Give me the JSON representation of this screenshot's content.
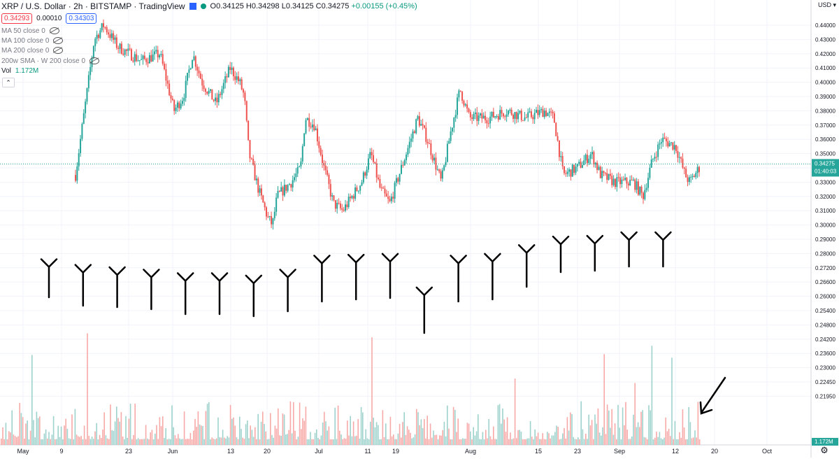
{
  "header": {
    "title": "XRP / U.S. Dollar · 2h · BITSTAMP · TradingView",
    "ohlc": {
      "o": "O0.34125",
      "h": "H0.34298",
      "l": "L0.34125",
      "c": "C0.34275",
      "chg": "+0.00155 (+0.45%)"
    },
    "bid": "0.34293",
    "spread": "0.00010",
    "ask": "0.34303",
    "indicators": [
      "MA 50 close 0",
      "MA 100 close 0",
      "MA 200 close 0",
      "200w SMA · W 200 close 0"
    ],
    "vol_label": "Vol",
    "vol_value": "1.172M",
    "currency": "USD"
  },
  "colors": {
    "up": "#26a69a",
    "down": "#ef5350",
    "up_vol": "#9ed3cd",
    "down_vol": "#f7a9a7",
    "price_line": "#26a69a",
    "grid": "#f0f3fa",
    "arrow": "#000000"
  },
  "chart_data": {
    "type": "candlestick",
    "title": "XRP / U.S. Dollar · 2h · BITSTAMP · TradingView",
    "y_axis": {
      "ticks": [
        "0.44000",
        "0.43000",
        "0.42000",
        "0.41000",
        "0.40000",
        "0.39000",
        "0.38000",
        "0.37000",
        "0.36000",
        "0.35000",
        "0.34000",
        "0.33000",
        "0.32000",
        "0.31000",
        "0.30000",
        "0.29000",
        "0.28000",
        "0.27200",
        "0.26600",
        "0.26000",
        "0.25400",
        "0.24800",
        "0.24200",
        "0.23600",
        "0.23000",
        "0.22450",
        "0.21950"
      ],
      "current_price": "0.34275",
      "countdown": "01:40:03",
      "volume_badge": "1.172M"
    },
    "x_axis": {
      "ticks": [
        "May",
        "9",
        "23",
        "Jun",
        "13",
        "20",
        "Jul",
        "11",
        "19",
        "Aug",
        "15",
        "23",
        "Sep",
        "12",
        "20",
        "Oct"
      ]
    },
    "path": [
      [
        0,
        0.335
      ],
      [
        4,
        0.43
      ],
      [
        6,
        0.44
      ],
      [
        9,
        0.425
      ],
      [
        14,
        0.415
      ],
      [
        18,
        0.42
      ],
      [
        21,
        0.38
      ],
      [
        23,
        0.39
      ],
      [
        25,
        0.42
      ],
      [
        27,
        0.4
      ],
      [
        30,
        0.385
      ],
      [
        33,
        0.41
      ],
      [
        35,
        0.4
      ],
      [
        36,
        0.39
      ],
      [
        37,
        0.35
      ],
      [
        39,
        0.325
      ],
      [
        41,
        0.305
      ],
      [
        42,
        0.3
      ],
      [
        43,
        0.32
      ],
      [
        46,
        0.33
      ],
      [
        48,
        0.34
      ],
      [
        49,
        0.375
      ],
      [
        51,
        0.37
      ],
      [
        53,
        0.34
      ],
      [
        55,
        0.315
      ],
      [
        57,
        0.31
      ],
      [
        59,
        0.32
      ],
      [
        61,
        0.33
      ],
      [
        63,
        0.35
      ],
      [
        65,
        0.325
      ],
      [
        67,
        0.315
      ],
      [
        69,
        0.335
      ],
      [
        71,
        0.355
      ],
      [
        73,
        0.375
      ],
      [
        75,
        0.36
      ],
      [
        77,
        0.34
      ],
      [
        78,
        0.33
      ],
      [
        80,
        0.365
      ],
      [
        82,
        0.395
      ],
      [
        84,
        0.375
      ],
      [
        88,
        0.375
      ],
      [
        92,
        0.38
      ],
      [
        96,
        0.375
      ],
      [
        100,
        0.38
      ],
      [
        102,
        0.375
      ],
      [
        104,
        0.335
      ],
      [
        107,
        0.34
      ],
      [
        110,
        0.35
      ],
      [
        112,
        0.335
      ],
      [
        115,
        0.33
      ],
      [
        119,
        0.33
      ],
      [
        121,
        0.32
      ],
      [
        123,
        0.345
      ],
      [
        125,
        0.36
      ],
      [
        128,
        0.355
      ],
      [
        130,
        0.335
      ],
      [
        131,
        0.33
      ],
      [
        133,
        0.34
      ]
    ],
    "arrows": [
      [
        0,
        0.2725
      ],
      [
        4,
        0.27
      ],
      [
        8,
        0.269
      ],
      [
        12,
        0.268
      ],
      [
        16,
        0.2665
      ],
      [
        20,
        0.2665
      ],
      [
        24,
        0.2655
      ],
      [
        28,
        0.268
      ],
      [
        32,
        0.2745
      ],
      [
        36,
        0.275
      ],
      [
        40,
        0.2755
      ],
      [
        44,
        0.2605
      ],
      [
        48,
        0.2745
      ],
      [
        52,
        0.2755
      ],
      [
        56,
        0.2805
      ],
      [
        60,
        0.2865
      ],
      [
        64,
        0.287
      ],
      [
        68,
        0.2895
      ],
      [
        72,
        0.2895
      ]
    ],
    "volume_arrow": true
  }
}
